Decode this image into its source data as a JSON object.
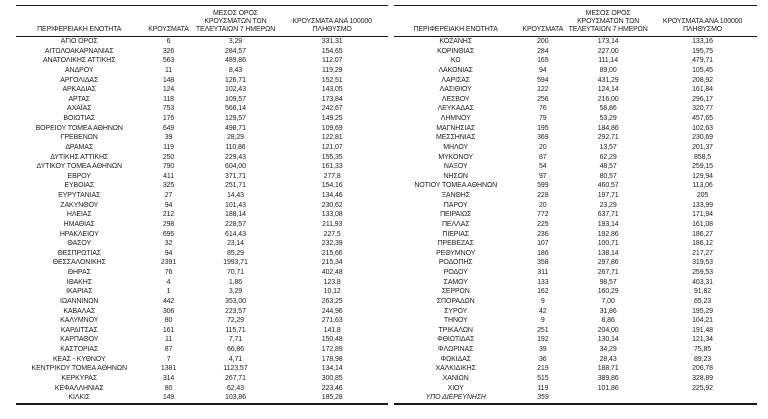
{
  "style": {
    "background": "#ffffff",
    "text_color": "#1c1c1c",
    "rule_color": "#1a1a1a"
  },
  "tables": [
    {
      "id": "left",
      "headers": {
        "region": "ΠΕΡΙΦΕΡΕΙΑΚΗ ΕΝΟΤΗΤΑ",
        "cases": "ΚΡΟΥΣΜΑΤΑ",
        "avg7": "ΜΕΣΟΣ ΟΡΟΣ\nΚΡΟΥΣΜΑΤΩΝ ΤΩΝ\nΤΕΛΕΥΤΑΙΩΝ 7 ΗΜΕΡΩΝ",
        "per100k": "ΚΡΟΥΣΜΑΤΑ ΑΝΑ 100000\nΠΛΗΘΥΣΜΟ"
      },
      "rows": [
        [
          "ΑΓΙΟ ΟΡΟΣ",
          "6",
          "3,29",
          "331,31"
        ],
        [
          "ΑΙΤΩΛΟΑΚΑΡΝΑΝΙΑΣ",
          "326",
          "284,57",
          "154,65"
        ],
        [
          "ΑΝΑΤΟΛΙΚΗΣ ΑΤΤΙΚΗΣ",
          "563",
          "489,86",
          "112,07"
        ],
        [
          "ΑΝΔΡΟΥ",
          "11",
          "8,43",
          "119,29"
        ],
        [
          "ΑΡΓΟΛΙΔΑΣ",
          "148",
          "126,71",
          "152,51"
        ],
        [
          "ΑΡΚΑΔΙΑΣ",
          "124",
          "102,43",
          "143,05"
        ],
        [
          "ΑΡΤΑΣ",
          "118",
          "109,57",
          "173,84"
        ],
        [
          "ΑΧΑΪΑΣ",
          "753",
          "566,14",
          "242,67"
        ],
        [
          "ΒΟΙΩΤΙΑΣ",
          "176",
          "129,57",
          "149,25"
        ],
        [
          "ΒΟΡΕΙΟΥ ΤΟΜΕΑ ΑΘΗΝΩΝ",
          "649",
          "498,71",
          "109,69"
        ],
        [
          "ΓΡΕΒΕΝΩΝ",
          "39",
          "28,29",
          "122,81"
        ],
        [
          "ΔΡΑΜΑΣ",
          "119",
          "110,86",
          "121,07"
        ],
        [
          "ΔΥΤΙΚΗΣ ΑΤΤΙΚΗΣ",
          "250",
          "229,43",
          "155,35"
        ],
        [
          "ΔΥΤΙΚΟΥ ΤΟΜΕΑ ΑΘΗΝΩΝ",
          "790",
          "604,00",
          "161,33"
        ],
        [
          "ΕΒΡΟΥ",
          "411",
          "371,71",
          "277,8"
        ],
        [
          "ΕΥΒΟΙΑΣ",
          "325",
          "251,71",
          "154,16"
        ],
        [
          "ΕΥΡΥΤΑΝΙΑΣ",
          "27",
          "14,43",
          "134,46"
        ],
        [
          "ΖΑΚΥΝΘΟΥ",
          "94",
          "101,43",
          "230,62"
        ],
        [
          "ΗΛΕΙΑΣ",
          "212",
          "188,14",
          "133,08"
        ],
        [
          "ΗΜΑΘΙΑΣ",
          "298",
          "228,57",
          "211,93"
        ],
        [
          "ΗΡΑΚΛΕΙΟΥ",
          "695",
          "614,43",
          "227,5"
        ],
        [
          "ΘΑΣΟΥ",
          "32",
          "23,14",
          "232,39"
        ],
        [
          "ΘΕΣΠΡΩΤΙΑΣ",
          "94",
          "85,29",
          "215,66"
        ],
        [
          "ΘΕΣΣΑΛΟΝΙΚΗΣ",
          "2391",
          "1993,71",
          "215,34"
        ],
        [
          "ΘΗΡΑΣ",
          "76",
          "70,71",
          "402,48"
        ],
        [
          "ΙΘΑΚΗΣ",
          "4",
          "1,86",
          "123,8"
        ],
        [
          "ΙΚΑΡΙΑΣ",
          "1",
          "3,29",
          "10,12"
        ],
        [
          "ΙΩΑΝΝΙΝΩΝ",
          "442",
          "353,00",
          "263,25"
        ],
        [
          "ΚΑΒΑΛΑΣ",
          "306",
          "223,57",
          "244,96"
        ],
        [
          "ΚΑΛΥΜΝΟΥ",
          "80",
          "72,29",
          "271,63"
        ],
        [
          "ΚΑΡΔΙΤΣΑΣ",
          "161",
          "115,71",
          "141,8"
        ],
        [
          "ΚΑΡΠΑΘΟΥ",
          "11",
          "7,71",
          "150,48"
        ],
        [
          "ΚΑΣΤΟΡΙΑΣ",
          "87",
          "66,86",
          "172,89"
        ],
        [
          "ΚΕΑΣ - ΚΥΘΝΟΥ",
          "7",
          "4,71",
          "178,98"
        ],
        [
          "ΚΕΝΤΡΙΚΟΥ ΤΟΜΕΑ ΑΘΗΝΩΝ",
          "1381",
          "1123,57",
          "134,14"
        ],
        [
          "ΚΕΡΚΥΡΑΣ",
          "314",
          "267,71",
          "300,85"
        ],
        [
          "ΚΕΦΑΛΛΗΝΙΑΣ",
          "80",
          "62,43",
          "223,46"
        ],
        [
          "ΚΙΛΚΙΣ",
          "149",
          "103,86",
          "185,28"
        ]
      ]
    },
    {
      "id": "right",
      "headers": {
        "region": "ΠΕΡΙΦΕΡΕΙΑΚΗ ΕΝΟΤΗΤΑ",
        "cases": "ΚΡΟΥΣΜΑΤΑ",
        "avg7": "ΜΕΣΟΣ ΟΡΟΣ\nΚΡΟΥΣΜΑΤΩΝ ΤΩΝ\nΤΕΛΕΥΤΑΙΩΝ 7 ΗΜΕΡΩΝ",
        "per100k": "ΚΡΟΥΣΜΑΤΑ ΑΝΑ 100000\nΠΛΗΘΥΣΜΟ"
      },
      "italic_region": "ΥΠΟ ΔΙΕΡΕΥΝΗΣΗ",
      "rows": [
        [
          "ΚΟΖΑΝΗΣ",
          "200",
          "173,14",
          "133,16"
        ],
        [
          "ΚΟΡΙΝΘΙΑΣ",
          "284",
          "227,00",
          "195,75"
        ],
        [
          "ΚΩ",
          "165",
          "111,14",
          "479,71"
        ],
        [
          "ΛΑΚΩΝΙΑΣ",
          "94",
          "89,00",
          "105,45"
        ],
        [
          "ΛΑΡΙΣΑΣ",
          "594",
          "431,29",
          "208,92"
        ],
        [
          "ΛΑΣΙΘΙΟΥ",
          "122",
          "124,14",
          "161,84"
        ],
        [
          "ΛΕΣΒΟΥ",
          "256",
          "216,00",
          "296,17"
        ],
        [
          "ΛΕΥΚΑΔΑΣ",
          "76",
          "58,86",
          "320,77"
        ],
        [
          "ΛΗΜΝΟΥ",
          "79",
          "53,29",
          "457,65"
        ],
        [
          "ΜΑΓΝΗΣΙΑΣ",
          "195",
          "184,86",
          "102,63"
        ],
        [
          "ΜΕΣΣΗΝΙΑΣ",
          "369",
          "292,71",
          "230,69"
        ],
        [
          "ΜΗΛΟΥ",
          "20",
          "13,57",
          "201,37"
        ],
        [
          "ΜΥΚΟΝΟΥ",
          "87",
          "62,29",
          "858,5"
        ],
        [
          "ΝΑΞΟΥ",
          "54",
          "48,57",
          "259,15"
        ],
        [
          "ΝΗΣΩΝ",
          "97",
          "80,57",
          "129,94"
        ],
        [
          "ΝΟΤΙΟΥ ΤΟΜΕΑ ΑΘΗΝΩΝ",
          "599",
          "460,57",
          "113,06"
        ],
        [
          "ΞΑΝΘΗΣ",
          "228",
          "197,71",
          "205"
        ],
        [
          "ΠΑΡΟΥ",
          "20",
          "23,29",
          "133,99"
        ],
        [
          "ΠΕΙΡΑΙΩΣ",
          "772",
          "637,71",
          "171,94"
        ],
        [
          "ΠΕΛΛΑΣ",
          "225",
          "193,14",
          "161,08"
        ],
        [
          "ΠΙΕΡΙΑΣ",
          "236",
          "192,86",
          "186,27"
        ],
        [
          "ΠΡΕΒΕΖΑΣ",
          "107",
          "100,71",
          "186,12"
        ],
        [
          "ΡΕΘΥΜΝΟΥ",
          "186",
          "138,14",
          "217,27"
        ],
        [
          "ΡΟΔΟΠΗΣ",
          "358",
          "297,86",
          "319,53"
        ],
        [
          "ΡΟΔΟΥ",
          "311",
          "267,71",
          "259,53"
        ],
        [
          "ΣΑΜΟΥ",
          "133",
          "98,57",
          "403,31"
        ],
        [
          "ΣΕΡΡΩΝ",
          "162",
          "160,29",
          "91,82"
        ],
        [
          "ΣΠΟΡΑΔΩΝ",
          "9",
          "7,00",
          "65,23"
        ],
        [
          "ΣΥΡΟΥ",
          "42",
          "31,86",
          "195,29"
        ],
        [
          "ΤΗΝΟΥ",
          "9",
          "8,86",
          "104,21"
        ],
        [
          "ΤΡΙΚΑΛΩΝ",
          "251",
          "204,00",
          "191,48"
        ],
        [
          "ΦΘΙΩΤΙΔΑΣ",
          "192",
          "130,14",
          "121,34"
        ],
        [
          "ΦΛΩΡΙΝΑΣ",
          "39",
          "34,29",
          "75,85"
        ],
        [
          "ΦΩΚΙΔΑΣ",
          "36",
          "28,43",
          "89,23"
        ],
        [
          "ΧΑΛΚΙΔΙΚΗΣ",
          "219",
          "188,71",
          "206,78"
        ],
        [
          "ΧΑΝΙΩΝ",
          "515",
          "389,86",
          "328,89"
        ],
        [
          "ΧΙΟΥ",
          "119",
          "101,86",
          "225,92"
        ],
        [
          "ΥΠΟ ΔΙΕΡΕΥΝΗΣΗ",
          "359",
          "",
          ""
        ]
      ]
    }
  ]
}
